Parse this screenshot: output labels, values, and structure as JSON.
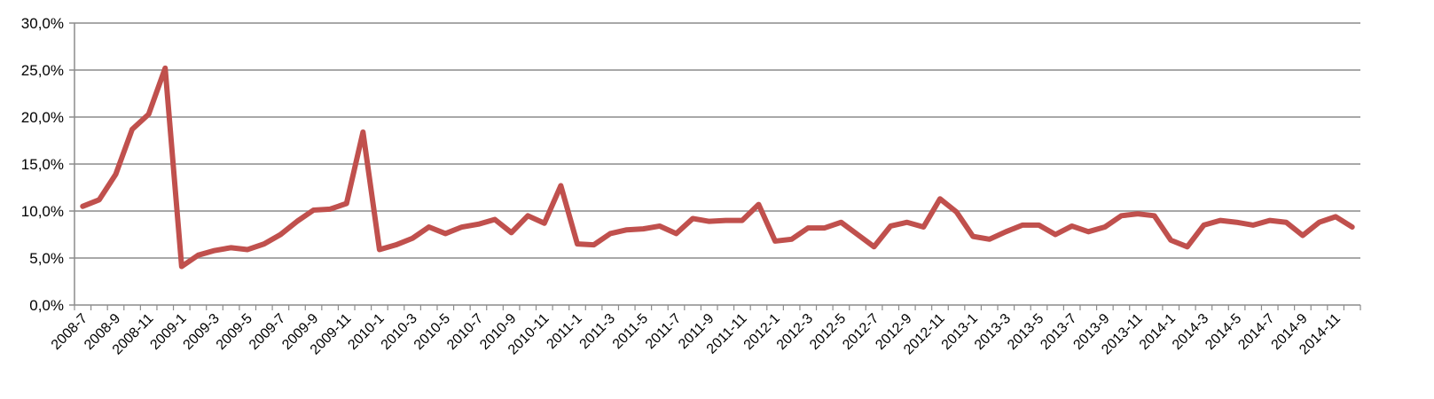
{
  "chart_data": {
    "type": "line",
    "title": "",
    "xlabel": "",
    "ylabel": "",
    "ylim": [
      0,
      30
    ],
    "y_ticks": [
      "0,0%",
      "5,0%",
      "10,0%",
      "15,0%",
      "20,0%",
      "25,0%",
      "30,0%"
    ],
    "y_tick_values": [
      0,
      5,
      10,
      15,
      20,
      25,
      30
    ],
    "grid": "horizontal",
    "legend": "none",
    "line_color": "#c0504d",
    "x": [
      "2008-7",
      "2008-8",
      "2008-9",
      "2008-10",
      "2008-11",
      "2008-12",
      "2009-1",
      "2009-2",
      "2009-3",
      "2009-4",
      "2009-5",
      "2009-6",
      "2009-7",
      "2009-8",
      "2009-9",
      "2009-10",
      "2009-11",
      "2009-12",
      "2010-1",
      "2010-2",
      "2010-3",
      "2010-4",
      "2010-5",
      "2010-6",
      "2010-7",
      "2010-8",
      "2010-9",
      "2010-10",
      "2010-11",
      "2010-12",
      "2011-1",
      "2011-2",
      "2011-3",
      "2011-4",
      "2011-5",
      "2011-6",
      "2011-7",
      "2011-8",
      "2011-9",
      "2011-10",
      "2011-11",
      "2011-12",
      "2012-1",
      "2012-2",
      "2012-3",
      "2012-4",
      "2012-5",
      "2012-6",
      "2012-7",
      "2012-8",
      "2012-9",
      "2012-10",
      "2012-11",
      "2012-12",
      "2013-1",
      "2013-2",
      "2013-3",
      "2013-4",
      "2013-5",
      "2013-6",
      "2013-7",
      "2013-8",
      "2013-9",
      "2013-10",
      "2013-11",
      "2013-12",
      "2014-1",
      "2014-2",
      "2014-3",
      "2014-4",
      "2014-5",
      "2014-6",
      "2014-7",
      "2014-8",
      "2014-9",
      "2014-10",
      "2014-11",
      "2014-12"
    ],
    "x_tick_labels": [
      "2008-7",
      "2008-9",
      "2008-11",
      "2009-1",
      "2009-3",
      "2009-5",
      "2009-7",
      "2009-9",
      "2009-11",
      "2010-1",
      "2010-3",
      "2010-5",
      "2010-7",
      "2010-9",
      "2010-11",
      "2011-1",
      "2011-3",
      "2011-5",
      "2011-7",
      "2011-9",
      "2011-11",
      "2012-1",
      "2012-3",
      "2012-5",
      "2012-7",
      "2012-9",
      "2012-11",
      "2013-1",
      "2013-3",
      "2013-5",
      "2013-7",
      "2013-9",
      "2013-11",
      "2014-1",
      "2014-3",
      "2014-5",
      "2014-7",
      "2014-9",
      "2014-11"
    ],
    "series": [
      {
        "values": [
          10.5,
          11.2,
          13.9,
          18.7,
          20.3,
          25.2,
          4.1,
          5.3,
          5.8,
          6.1,
          5.9,
          6.5,
          7.5,
          8.9,
          10.1,
          10.2,
          10.8,
          18.4,
          5.9,
          6.4,
          7.1,
          8.3,
          7.6,
          8.3,
          8.6,
          9.1,
          7.7,
          9.5,
          8.7,
          12.7,
          6.5,
          6.4,
          7.6,
          8.0,
          8.1,
          8.4,
          7.6,
          9.2,
          8.9,
          9.0,
          9.0,
          10.7,
          6.8,
          7.0,
          8.2,
          8.2,
          8.8,
          7.5,
          6.2,
          8.4,
          8.8,
          8.3,
          11.3,
          9.9,
          7.3,
          7.0,
          7.8,
          8.5,
          8.5,
          7.5,
          8.4,
          7.8,
          8.3,
          9.5,
          9.7,
          9.5,
          6.9,
          6.2,
          8.5,
          9.0,
          8.8,
          8.5,
          9.0,
          8.8,
          7.4,
          8.8,
          9.4,
          8.3
        ]
      }
    ]
  }
}
